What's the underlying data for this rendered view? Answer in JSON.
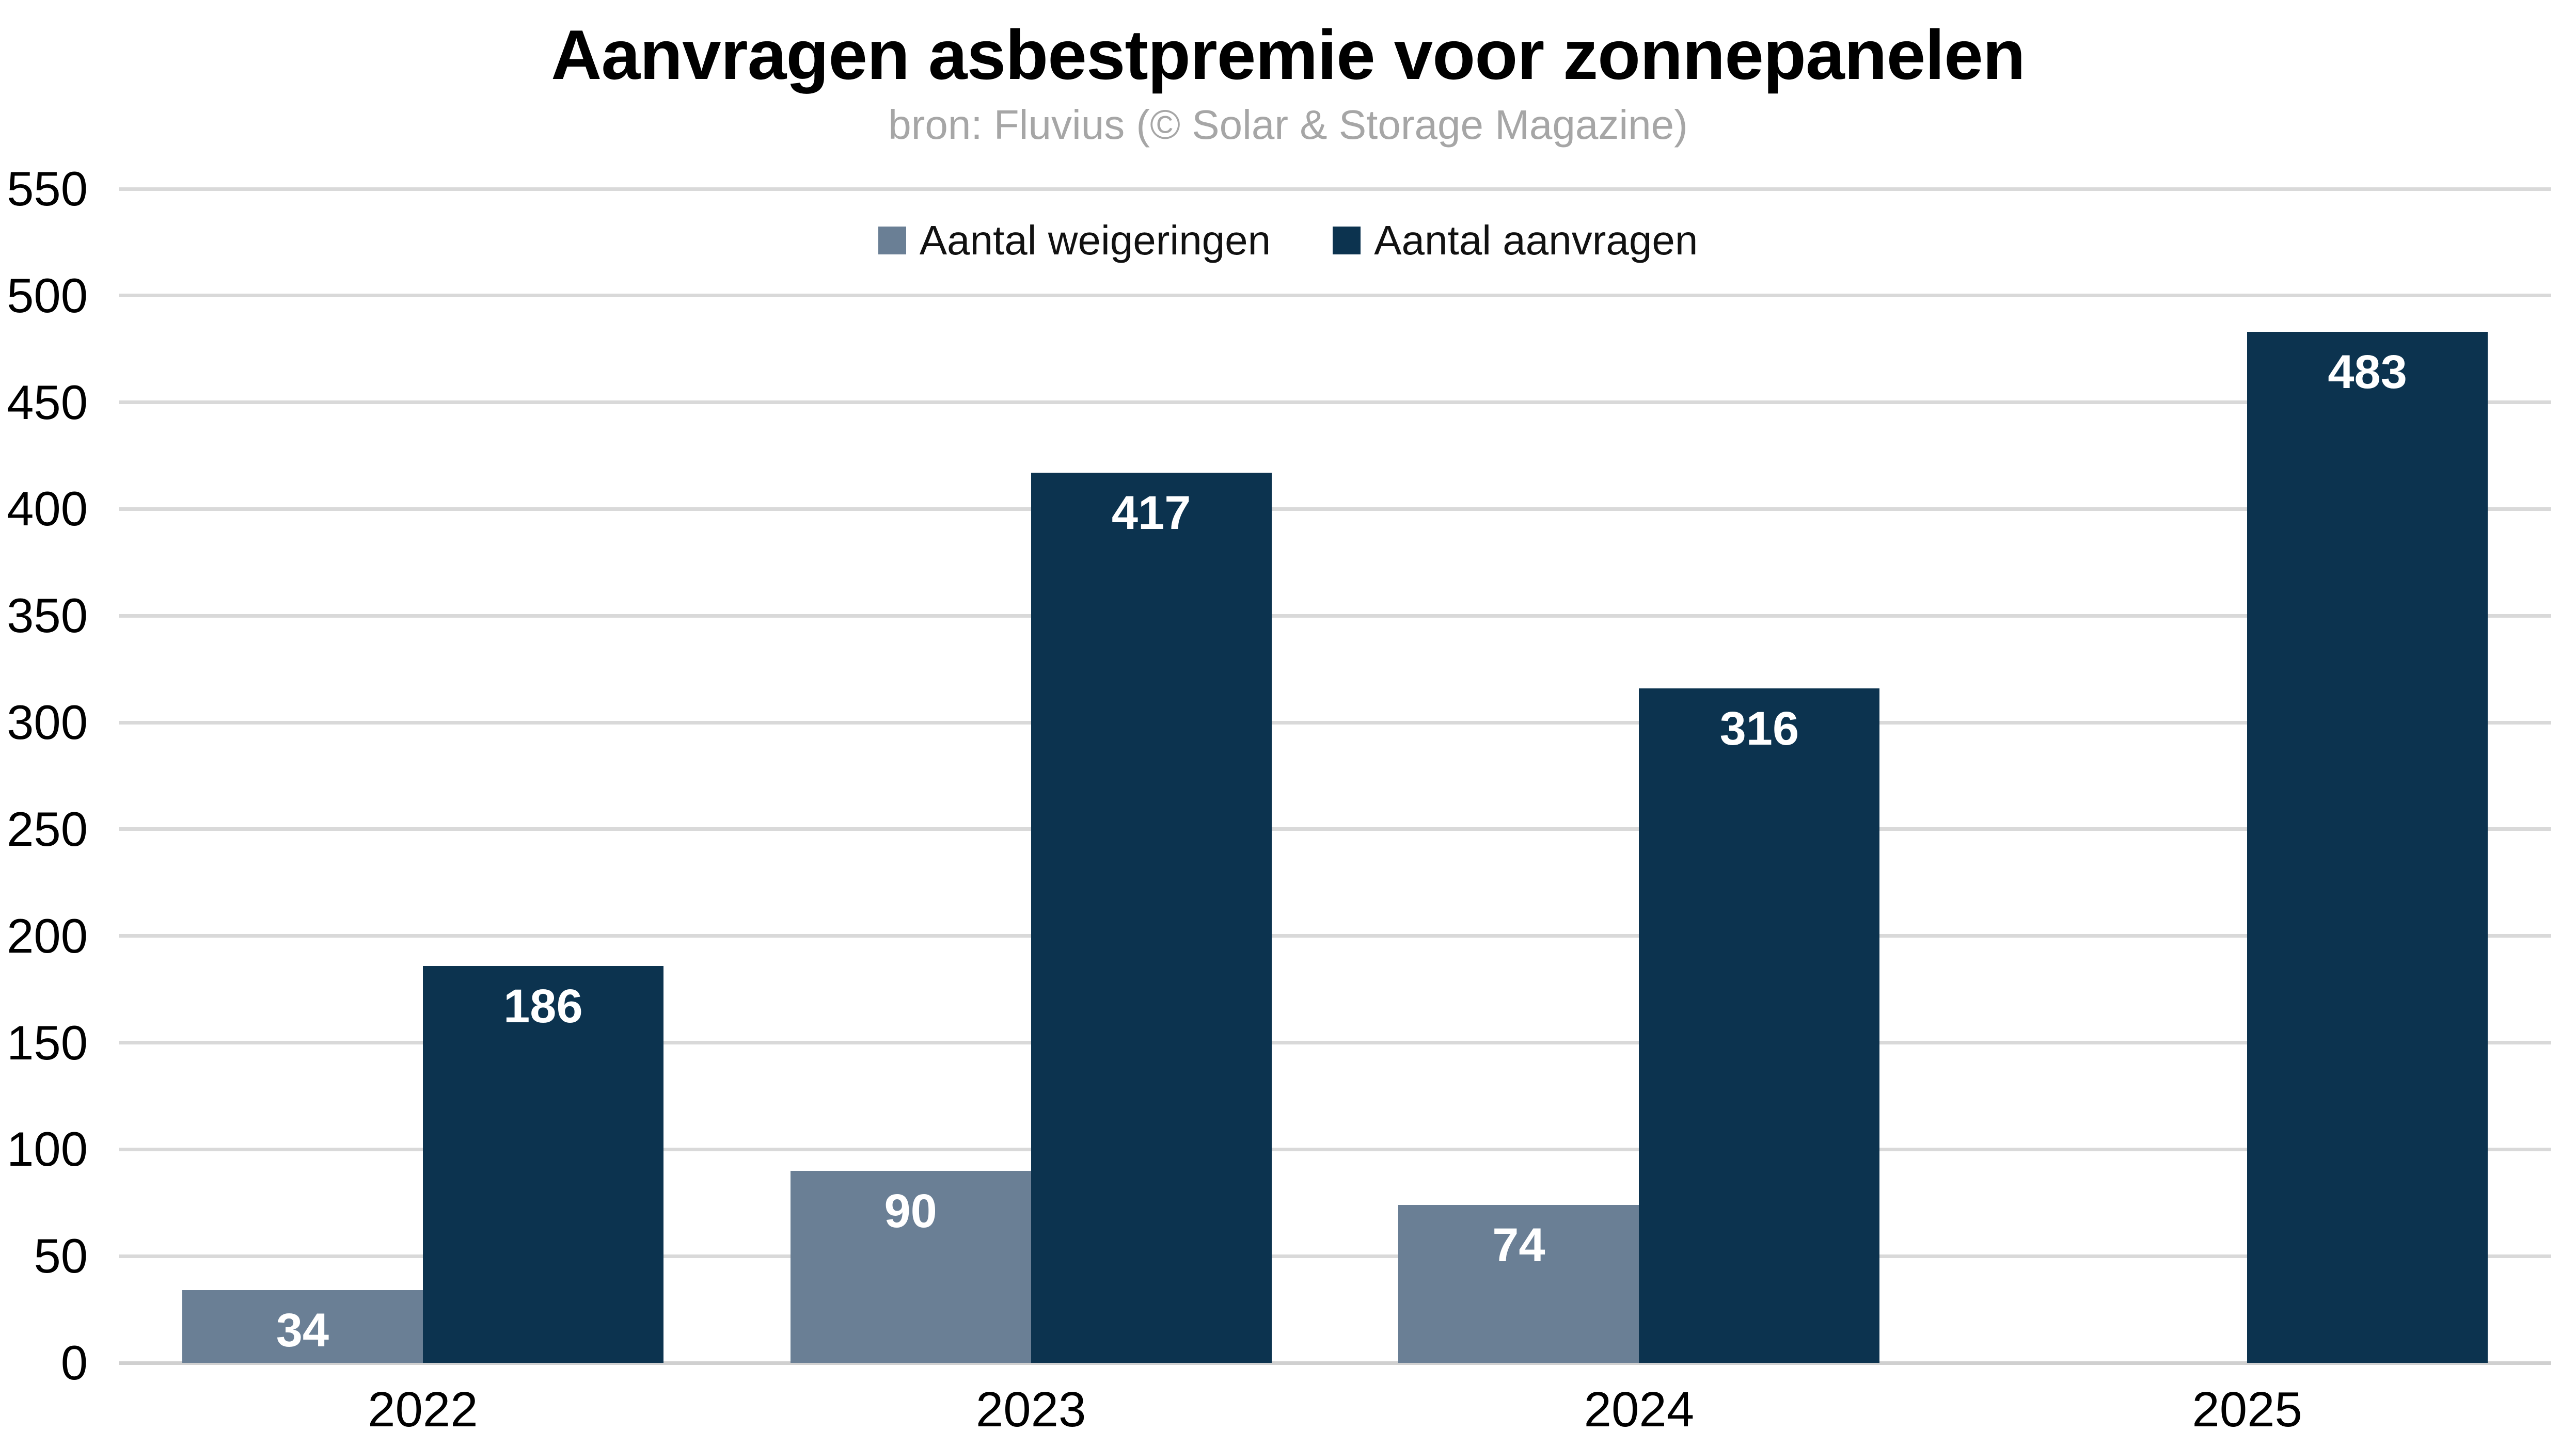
{
  "header": {
    "title": "Aanvragen asbestpremie voor zonnepanelen",
    "subtitle": "bron: Fluvius (© Solar & Storage Magazine)"
  },
  "chart_data": {
    "type": "bar",
    "title": "Aanvragen asbestpremie voor zonnepanelen",
    "subtitle": "bron: Fluvius (© Solar & Storage Magazine)",
    "categories": [
      "2022",
      "2023",
      "2024",
      "2025"
    ],
    "series": [
      {
        "name": "Aantal weigeringen",
        "color": "#6A7F95",
        "values": [
          34,
          90,
          74,
          null
        ]
      },
      {
        "name": "Aantal aanvragen",
        "color": "#0C334F",
        "values": [
          186,
          417,
          316,
          483
        ]
      }
    ],
    "ylim": [
      0,
      550
    ],
    "ytick_step": 50,
    "grid": "horizontal",
    "legend_position": "top-center",
    "value_labels": "inside-top",
    "colors": {
      "grid": "#D9D9D9",
      "zero_line": "#D0D0D0",
      "bar_label": "#FFFFFF",
      "tick_label": "#000000",
      "subtitle": "#A6A6A6",
      "background": "#FFFFFF"
    }
  }
}
